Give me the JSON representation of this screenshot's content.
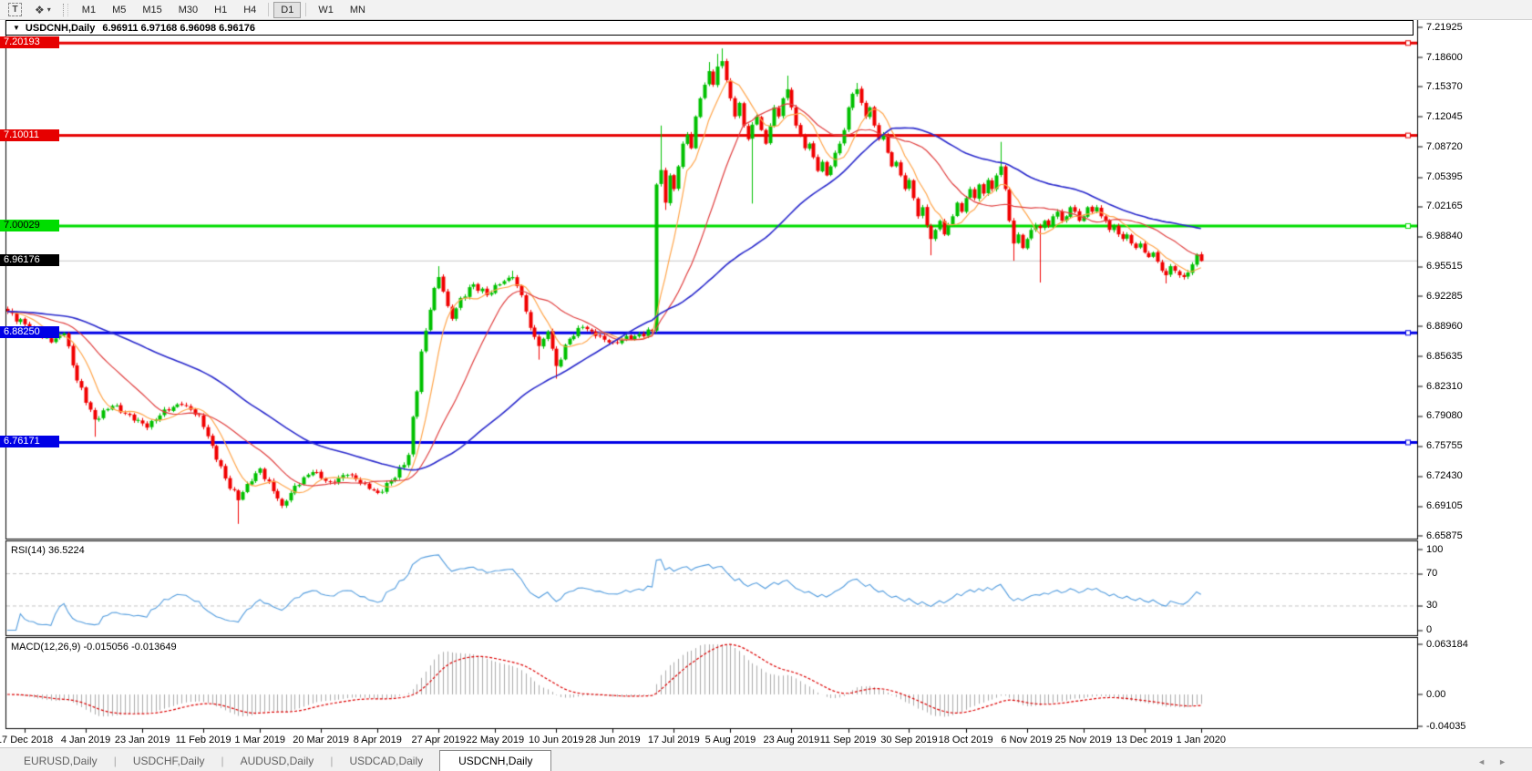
{
  "toolbar": {
    "text_tool_label": "T",
    "arrange_icon": "❖",
    "caret_icon": "▾",
    "timeframes": [
      {
        "label": "M1",
        "active": false,
        "sep_after": false
      },
      {
        "label": "M5",
        "active": false,
        "sep_after": false
      },
      {
        "label": "M15",
        "active": false,
        "sep_after": false
      },
      {
        "label": "M30",
        "active": false,
        "sep_after": false
      },
      {
        "label": "H1",
        "active": false,
        "sep_after": false
      },
      {
        "label": "H4",
        "active": false,
        "sep_after": true
      },
      {
        "label": "D1",
        "active": true,
        "sep_after": true
      },
      {
        "label": "W1",
        "active": false,
        "sep_after": false
      },
      {
        "label": "MN",
        "active": false,
        "sep_after": false
      }
    ]
  },
  "chart": {
    "collapse_icon": "▼",
    "title_symbol": "USDCNH,Daily",
    "title_quotes": "6.96911 6.97168 6.96098 6.96176"
  },
  "rsi": {
    "label": "RSI(14) 36.5224"
  },
  "macd": {
    "label": "MACD(12,26,9) -0.015056 -0.013649"
  },
  "tabs": {
    "items": [
      {
        "label": "EURUSD,Daily",
        "active": false
      },
      {
        "label": "USDCHF,Daily",
        "active": false
      },
      {
        "label": "AUDUSD,Daily",
        "active": false
      },
      {
        "label": "USDCAD,Daily",
        "active": false
      },
      {
        "label": "USDCNH,Daily",
        "active": true
      }
    ],
    "scroll_left_icon": "◄",
    "scroll_right_icon": "►"
  },
  "chart_data": {
    "type": "candlestick",
    "symbol": "USDCNH",
    "timeframe": "Daily",
    "last_candle": {
      "open": 6.96911,
      "high": 6.97168,
      "low": 6.96098,
      "close": 6.96176
    },
    "colors": {
      "bull": "#00c000",
      "bear": "#f00000",
      "ma_fast": "#ffa64d",
      "ma_mid": "#e04040",
      "ma_slow": "#2a2acc",
      "rsi_line": "#549dde",
      "macd_bars": "#ababab",
      "macd_signal": "#dd0000",
      "current_line": "#c8c8c8"
    },
    "price_axis_ticks": [
      "7.21925",
      "7.18600",
      "7.15370",
      "7.12045",
      "7.08720",
      "7.05395",
      "7.02165",
      "6.98840",
      "6.95515",
      "6.92285",
      "6.88960",
      "6.85635",
      "6.82310",
      "6.79080",
      "6.75755",
      "6.72430",
      "6.69105",
      "6.65875"
    ],
    "horizontal_lines": [
      {
        "price": 7.20193,
        "label": "7.20193",
        "color": "#e60000",
        "badge_fg": "#ffffff"
      },
      {
        "price": 7.10011,
        "label": "7.10011",
        "color": "#e60000",
        "badge_fg": "#ffffff"
      },
      {
        "price": 7.00029,
        "label": "7.00029",
        "color": "#00dd00",
        "badge_fg": "#000000"
      },
      {
        "price": 6.8825,
        "label": "6.88250",
        "color": "#0000e6",
        "badge_fg": "#ffffff"
      },
      {
        "price": 6.76171,
        "label": "6.76171",
        "color": "#0000e6",
        "badge_fg": "#ffffff"
      }
    ],
    "current_price": {
      "price": 6.96176,
      "label": "6.96176",
      "badge_bg": "#000000",
      "badge_fg": "#ffffff"
    },
    "date_ticks": [
      "17 Dec 2018",
      "4 Jan 2019",
      "23 Jan 2019",
      "11 Feb 2019",
      "1 Mar 2019",
      "20 Mar 2019",
      "8 Apr 2019",
      "27 Apr 2019",
      "22 May 2019",
      "10 Jun 2019",
      "28 Jun 2019",
      "17 Jul 2019",
      "5 Aug 2019",
      "23 Aug 2019",
      "11 Sep 2019",
      "30 Sep 2019",
      "18 Oct 2019",
      "6 Nov 2019",
      "25 Nov 2019",
      "13 Dec 2019",
      "1 Jan 2020"
    ],
    "num_candles": 275,
    "close_keyframes": [
      0,
      6.906,
      5,
      6.888,
      10,
      6.872,
      13,
      6.882,
      16,
      6.83,
      20,
      6.787,
      24,
      6.802,
      28,
      6.792,
      32,
      6.778,
      36,
      6.798,
      40,
      6.803,
      44,
      6.792,
      47,
      6.758,
      50,
      6.722,
      53,
      6.698,
      55,
      6.716,
      58,
      6.733,
      61,
      6.708,
      63,
      6.692,
      66,
      6.714,
      70,
      6.729,
      74,
      6.718,
      78,
      6.726,
      82,
      6.716,
      85,
      6.706,
      88,
      6.72,
      91,
      6.737,
      92,
      6.748,
      93,
      6.79,
      94,
      6.818,
      95,
      6.862,
      97,
      6.908,
      98,
      6.932,
      99,
      6.944,
      101,
      6.912,
      102,
      6.898,
      104,
      6.921,
      107,
      6.936,
      110,
      6.924,
      113,
      6.936,
      116,
      6.944,
      118,
      6.924,
      120,
      6.888,
      122,
      6.868,
      124,
      6.884,
      126,
      6.846,
      129,
      6.876,
      132,
      6.889,
      135,
      6.879,
      139,
      6.872,
      144,
      6.879,
      148,
      6.885,
      149,
      7.046,
      150,
      7.062,
      151,
      7.026,
      152,
      7.056,
      153,
      7.041,
      154,
      7.066,
      155,
      7.091,
      156,
      7.101,
      157,
      7.086,
      158,
      7.121,
      159,
      7.141,
      160,
      7.156,
      161,
      7.171,
      162,
      7.156,
      163,
      7.176,
      164,
      7.182,
      165,
      7.161,
      166,
      7.141,
      167,
      7.121,
      168,
      7.136,
      169,
      7.111,
      170,
      7.096,
      171,
      7.112,
      172,
      7.121,
      173,
      7.106,
      174,
      7.091,
      175,
      7.111,
      176,
      7.131,
      177,
      7.121,
      178,
      7.141,
      179,
      7.151,
      180,
      7.131,
      181,
      7.111,
      182,
      7.101,
      183,
      7.086,
      184,
      7.091,
      185,
      7.076,
      186,
      7.061,
      187,
      7.071,
      188,
      7.056,
      189,
      7.066,
      190,
      7.081,
      191,
      7.091,
      192,
      7.106,
      193,
      7.131,
      194,
      7.146,
      195,
      7.151,
      196,
      7.136,
      197,
      7.121,
      198,
      7.131,
      199,
      7.111,
      200,
      7.096,
      201,
      7.101,
      202,
      7.081,
      203,
      7.066,
      204,
      7.071,
      205,
      7.056,
      206,
      7.041,
      207,
      7.051,
      208,
      7.031,
      209,
      7.011,
      210,
      7.021,
      211,
      7.001,
      212,
      6.986,
      213,
      6.996,
      214,
      7.006,
      215,
      6.991,
      216,
      7.001,
      217,
      7.011,
      218,
      7.026,
      219,
      7.016,
      220,
      7.031,
      221,
      7.041,
      222,
      7.031,
      223,
      7.046,
      224,
      7.036,
      225,
      7.051,
      226,
      7.041,
      227,
      7.056,
      228,
      7.066,
      229,
      7.041,
      230,
      7.006,
      231,
      6.981,
      232,
      6.991,
      233,
      6.976,
      234,
      6.986,
      235,
      6.996,
      236,
      7.001,
      237,
      6.998,
      238,
      7.006,
      239,
      7.001,
      240,
      7.011,
      241,
      7.016,
      242,
      7.006,
      243,
      7.011,
      244,
      7.021,
      245,
      7.016,
      246,
      7.006,
      247,
      7.011,
      248,
      7.021,
      249,
      7.016,
      250,
      7.021,
      251,
      7.011,
      252,
      7.006,
      253,
      6.996,
      254,
      7.001,
      255,
      6.991,
      256,
      6.986,
      257,
      6.991,
      258,
      6.981,
      259,
      6.976,
      260,
      6.981,
      261,
      6.971,
      262,
      6.966,
      263,
      6.971,
      264,
      6.961,
      265,
      6.951,
      266,
      6.946,
      267,
      6.956,
      268,
      6.951,
      269,
      6.946,
      270,
      6.944,
      271,
      6.949,
      272,
      6.958,
      273,
      6.969,
      274,
      6.96176
    ],
    "wick_overrides": [
      [
        20,
        null,
        6.768
      ],
      [
        53,
        null,
        6.672
      ],
      [
        99,
        6.956,
        null
      ],
      [
        116,
        6.951,
        null
      ],
      [
        122,
        null,
        6.853
      ],
      [
        126,
        null,
        6.832
      ],
      [
        150,
        7.111,
        null
      ],
      [
        151,
        null,
        7.018
      ],
      [
        161,
        7.181,
        null
      ],
      [
        163,
        7.19,
        null
      ],
      [
        164,
        7.196,
        null
      ],
      [
        171,
        null,
        7.025
      ],
      [
        179,
        7.166,
        null
      ],
      [
        195,
        7.158,
        null
      ],
      [
        212,
        null,
        6.968
      ],
      [
        228,
        7.093,
        null
      ],
      [
        231,
        null,
        6.962
      ],
      [
        237,
        null,
        6.938
      ],
      [
        266,
        null,
        6.937
      ]
    ],
    "moving_averages": [
      {
        "period": 8,
        "color": "#ffa64d",
        "width": 1.2
      },
      {
        "period": 21,
        "color": "#e04040",
        "width": 1.2
      },
      {
        "period": 55,
        "color": "#2a2acc",
        "width": 1.6
      }
    ],
    "rsi": {
      "period": 14,
      "current": 36.5224,
      "levels": [
        70,
        30
      ],
      "scale_labels": [
        "100",
        "70",
        "30",
        "0"
      ],
      "scale_values": [
        100,
        70,
        30,
        0
      ]
    },
    "macd": {
      "fast": 12,
      "slow": 26,
      "signal": 9,
      "current_macd": -0.015056,
      "current_signal": -0.013649,
      "scale_labels": [
        "0.063184",
        "0.00",
        "-0.04035"
      ],
      "scale_values": [
        0.063184,
        0.0,
        -0.04035
      ]
    }
  }
}
